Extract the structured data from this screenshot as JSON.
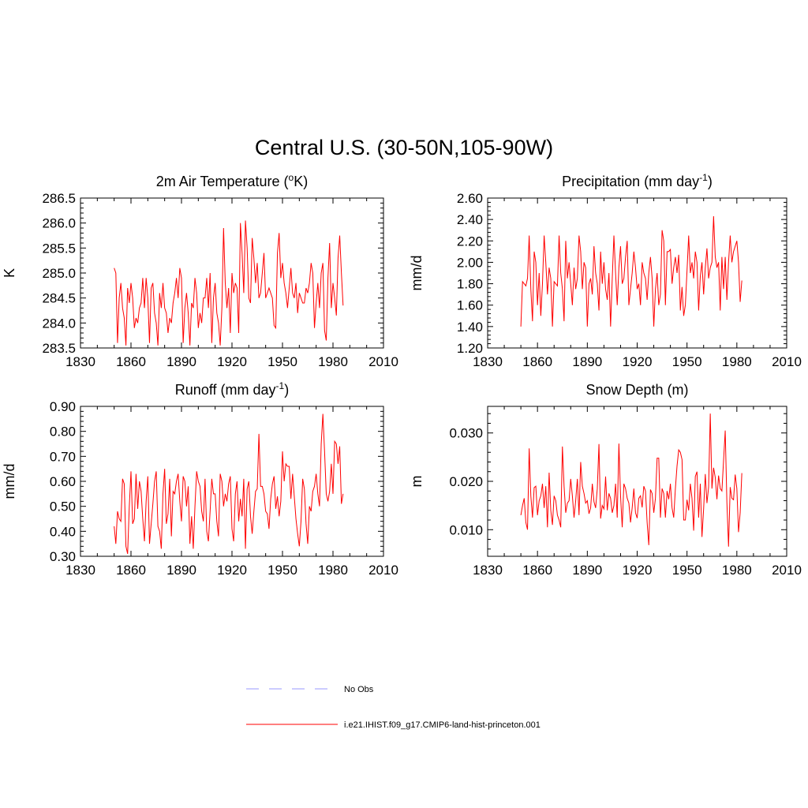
{
  "figure": {
    "title": "Central U.S. (30-50N,105-90W)"
  },
  "legend": {
    "items": [
      {
        "label": "No Obs",
        "color": "#9999ff",
        "dash": true
      },
      {
        "label": "i.e21.IHIST.f09_g17.CMIP6-land-hist-princeton.001",
        "color": "#ff0000",
        "dash": false
      }
    ]
  },
  "chart_data": [
    {
      "type": "line",
      "title": "2m Air Temperature",
      "title_unit_prefix": " (",
      "title_unit_super": "o",
      "title_unit_suffix": "K)",
      "ylabel": "K",
      "xlim": [
        1830,
        2010
      ],
      "ylim": [
        283.5,
        286.5
      ],
      "xticks": [
        1830,
        1860,
        1890,
        1920,
        1950,
        1980,
        2010
      ],
      "yticks": [
        283.5,
        284.0,
        284.5,
        285.0,
        285.5,
        286.0,
        286.5
      ],
      "ytick_decimals": 1,
      "grid": false,
      "series": [
        {
          "color": "#ff0000",
          "x_start": 1850,
          "values": [
            285.1,
            285.0,
            283.6,
            284.5,
            284.8,
            284.3,
            284.1,
            283.55,
            284.7,
            284.4,
            284.8,
            284.5,
            283.9,
            284.1,
            284.0,
            284.3,
            284.4,
            284.9,
            284.3,
            284.9,
            284.5,
            283.6,
            284.7,
            284.8,
            284.2,
            284.0,
            283.55,
            284.6,
            284.3,
            284.8,
            284.3,
            284.2,
            283.8,
            284.1,
            284.0,
            284.4,
            284.6,
            284.9,
            284.5,
            285.1,
            284.9,
            283.6,
            284.3,
            284.6,
            284.2,
            283.55,
            284.4,
            284.3,
            284.9,
            284.6,
            283.9,
            284.2,
            284.0,
            284.5,
            284.5,
            284.9,
            284.3,
            285.0,
            283.6,
            284.5,
            284.8,
            284.2,
            284.0,
            283.55,
            284.3,
            285.9,
            284.8,
            284.3,
            284.7,
            283.8,
            285.0,
            284.6,
            284.8,
            284.7,
            283.8,
            286.0,
            285.4,
            284.6,
            286.05,
            285.5,
            284.5,
            284.4,
            285.7,
            285.3,
            284.8,
            285.2,
            284.5,
            284.6,
            285.0,
            285.4,
            284.5,
            284.6,
            284.7,
            284.6,
            284.5,
            283.95,
            283.9,
            285.4,
            285.8,
            284.9,
            285.2,
            284.8,
            284.6,
            284.3,
            284.7,
            285.1,
            284.6,
            284.5,
            284.8,
            284.2,
            284.6,
            284.5,
            284.4,
            284.4,
            284.7,
            284.6,
            284.8,
            285.2,
            285.0,
            283.9,
            284.4,
            284.8,
            284.3,
            285.0,
            285.2,
            283.85,
            283.65,
            284.9,
            285.6,
            284.3,
            284.8,
            284.5,
            284.15,
            285.3,
            285.75,
            285.0,
            284.35
          ]
        }
      ]
    },
    {
      "type": "line",
      "title": "Precipitation",
      "title_unit_prefix": " (mm day",
      "title_unit_super": "-1",
      "title_unit_suffix": ")",
      "ylabel": "mm/d",
      "xlim": [
        1830,
        2010
      ],
      "ylim": [
        1.2,
        2.6
      ],
      "xticks": [
        1830,
        1860,
        1890,
        1920,
        1950,
        1980,
        2010
      ],
      "yticks": [
        1.2,
        1.4,
        1.6,
        1.8,
        2.0,
        2.2,
        2.4,
        2.6
      ],
      "ytick_decimals": 2,
      "grid": false,
      "series": [
        {
          "color": "#ff0000",
          "x_start": 1850,
          "values": [
            1.4,
            1.82,
            1.8,
            1.78,
            1.85,
            2.25,
            1.75,
            1.45,
            2.1,
            2.0,
            1.6,
            1.9,
            1.5,
            1.8,
            2.25,
            2.0,
            1.7,
            1.95,
            1.85,
            1.4,
            1.82,
            1.8,
            1.78,
            2.25,
            1.9,
            1.75,
            1.45,
            2.2,
            1.85,
            2.0,
            1.8,
            1.6,
            1.95,
            1.75,
            1.85,
            2.25,
            2.1,
            1.75,
            2.0,
            1.95,
            1.4,
            1.8,
            1.85,
            1.7,
            2.15,
            1.9,
            1.8,
            1.55,
            2.1,
            1.8,
            2.0,
            1.75,
            1.65,
            1.9,
            1.4,
            1.85,
            2.25,
            1.9,
            1.6,
            1.95,
            2.15,
            1.8,
            1.85,
            2.05,
            2.2,
            1.6,
            1.75,
            1.9,
            2.1,
            1.95,
            1.75,
            1.8,
            1.6,
            2.0,
            1.9,
            1.85,
            1.65,
            1.9,
            2.05,
            1.85,
            1.4,
            1.75,
            1.9,
            1.6,
            1.7,
            2.3,
            2.2,
            1.6,
            2.1,
            2.1,
            2.12,
            1.8,
            1.95,
            2.05,
            1.9,
            2.07,
            1.55,
            1.77,
            1.5,
            1.6,
            1.92,
            2.25,
            1.9,
            2.0,
            1.85,
            2.1,
            2.0,
            1.55,
            1.87,
            2.0,
            1.7,
            1.95,
            2.13,
            1.85,
            1.95,
            2.0,
            2.43,
            2.05,
            1.95,
            2.0,
            1.55,
            2.05,
            1.75,
            2.05,
            1.65,
            2.0,
            2.25,
            2.0,
            2.1,
            2.15,
            2.2,
            2.0,
            1.63,
            1.83
          ]
        }
      ]
    },
    {
      "type": "line",
      "title": "Runoff",
      "title_unit_prefix": " (mm day",
      "title_unit_super": "-1",
      "title_unit_suffix": ")",
      "ylabel": "mm/d",
      "xlim": [
        1830,
        2010
      ],
      "ylim": [
        0.3,
        0.9
      ],
      "xticks": [
        1830,
        1860,
        1890,
        1920,
        1950,
        1980,
        2010
      ],
      "yticks": [
        0.3,
        0.4,
        0.5,
        0.6,
        0.7,
        0.8,
        0.9
      ],
      "ytick_decimals": 2,
      "grid": false,
      "series": [
        {
          "color": "#ff0000",
          "x_start": 1850,
          "values": [
            0.42,
            0.35,
            0.48,
            0.45,
            0.44,
            0.61,
            0.59,
            0.34,
            0.31,
            0.5,
            0.64,
            0.43,
            0.45,
            0.63,
            0.49,
            0.6,
            0.56,
            0.45,
            0.36,
            0.52,
            0.62,
            0.35,
            0.43,
            0.51,
            0.6,
            0.64,
            0.42,
            0.4,
            0.33,
            0.55,
            0.65,
            0.43,
            0.47,
            0.61,
            0.38,
            0.56,
            0.55,
            0.6,
            0.63,
            0.52,
            0.44,
            0.62,
            0.6,
            0.5,
            0.58,
            0.35,
            0.46,
            0.33,
            0.5,
            0.64,
            0.6,
            0.58,
            0.48,
            0.44,
            0.61,
            0.4,
            0.36,
            0.48,
            0.61,
            0.55,
            0.55,
            0.44,
            0.38,
            0.63,
            0.6,
            0.5,
            0.55,
            0.52,
            0.59,
            0.62,
            0.41,
            0.36,
            0.55,
            0.6,
            0.44,
            0.53,
            0.46,
            0.61,
            0.33,
            0.57,
            0.6,
            0.46,
            0.39,
            0.48,
            0.56,
            0.57,
            0.79,
            0.58,
            0.58,
            0.55,
            0.48,
            0.47,
            0.41,
            0.53,
            0.59,
            0.62,
            0.49,
            0.54,
            0.46,
            0.52,
            0.72,
            0.6,
            0.67,
            0.66,
            0.66,
            0.53,
            0.63,
            0.54,
            0.45,
            0.39,
            0.34,
            0.44,
            0.61,
            0.57,
            0.43,
            0.35,
            0.5,
            0.48,
            0.56,
            0.58,
            0.63,
            0.55,
            0.5,
            0.75,
            0.87,
            0.72,
            0.55,
            0.52,
            0.56,
            0.67,
            0.55,
            0.76,
            0.75,
            0.67,
            0.74,
            0.51,
            0.55
          ]
        }
      ]
    },
    {
      "type": "line",
      "title": "Snow Depth (m)",
      "title_unit_prefix": "",
      "title_unit_super": "",
      "title_unit_suffix": "",
      "ylabel": "m",
      "xlim": [
        1830,
        2010
      ],
      "ylim": [
        0.0045,
        0.0355
      ],
      "xticks": [
        1830,
        1860,
        1890,
        1920,
        1950,
        1980,
        2010
      ],
      "yticks": [
        0.01,
        0.02,
        0.03
      ],
      "ytick_decimals": 3,
      "grid": false,
      "series": [
        {
          "color": "#ff0000",
          "x_start": 1850,
          "values": [
            0.013,
            0.015,
            0.0165,
            0.0115,
            0.01,
            0.0268,
            0.017,
            0.0125,
            0.0187,
            0.019,
            0.013,
            0.016,
            0.017,
            0.0195,
            0.0145,
            0.019,
            0.0105,
            0.0218,
            0.014,
            0.011,
            0.017,
            0.016,
            0.013,
            0.012,
            0.0105,
            0.0272,
            0.019,
            0.0135,
            0.0155,
            0.016,
            0.0205,
            0.017,
            0.0125,
            0.016,
            0.0205,
            0.013,
            0.024,
            0.019,
            0.0175,
            0.0155,
            0.016,
            0.0133,
            0.0145,
            0.0195,
            0.0158,
            0.0145,
            0.0185,
            0.0277,
            0.0123,
            0.015,
            0.0143,
            0.021,
            0.014,
            0.0175,
            0.0165,
            0.0135,
            0.015,
            0.0195,
            0.0125,
            0.0278,
            0.017,
            0.0105,
            0.0195,
            0.0185,
            0.0165,
            0.0155,
            0.0115,
            0.0145,
            0.0185,
            0.0135,
            0.0124,
            0.0165,
            0.017,
            0.0146,
            0.019,
            0.018,
            0.0115,
            0.0068,
            0.0183,
            0.0175,
            0.0135,
            0.0165,
            0.0248,
            0.0248,
            0.0125,
            0.0185,
            0.0175,
            0.0125,
            0.018,
            0.0163,
            0.0195,
            0.0145,
            0.0125,
            0.0185,
            0.0232,
            0.0265,
            0.026,
            0.0245,
            0.012,
            0.012,
            0.0162,
            0.014,
            0.0195,
            0.0165,
            0.0098,
            0.021,
            0.022,
            0.0125,
            0.0195,
            0.0085,
            0.0143,
            0.0215,
            0.0155,
            0.0188,
            0.034,
            0.0185,
            0.0228,
            0.0208,
            0.0163,
            0.0212,
            0.0185,
            0.018,
            0.0243,
            0.0305,
            0.0157,
            0.0065,
            0.0188,
            0.0165,
            0.0162,
            0.0214,
            0.0185,
            0.0095,
            0.0135,
            0.0217
          ]
        }
      ]
    }
  ]
}
